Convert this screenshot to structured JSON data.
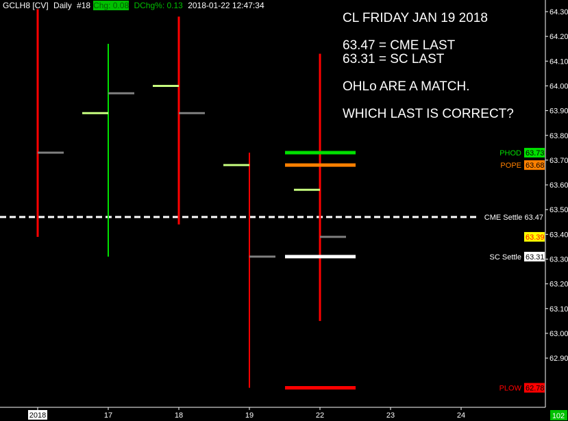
{
  "header": {
    "symbol": "GCLH8 [CV]",
    "interval": "Daily",
    "bar_number": "#18",
    "chg": "Chg: 0.08",
    "dchg": "DChg%: 0.13",
    "timestamp": "2018-01-22 12:47:34"
  },
  "annotation": {
    "line1": "CL FRIDAY JAN 19 2018",
    "line2": "63.47 = CME LAST",
    "line3": "63.31 = SC LAST",
    "line4": "OHLo ARE A MATCH.",
    "line5": "WHICH LAST IS CORRECT?"
  },
  "colors": {
    "background": "#000000",
    "down_bar": "#ff0000",
    "up_bar": "#00e000",
    "open_tick": "#c8ff80",
    "close_tick": "#808080",
    "axis": "#ffffff"
  },
  "chart_data": {
    "type": "ohlc",
    "ylim": [
      62.75,
      64.32
    ],
    "y_ticks": [
      "64.30",
      "64.20",
      "64.10",
      "64.00",
      "63.90",
      "63.80",
      "63.70",
      "63.60",
      "63.50",
      "63.40",
      "63.30",
      "63.20",
      "63.10",
      "63.00",
      "62.90"
    ],
    "x_labels": [
      "2018",
      "17",
      "18",
      "19",
      "22",
      "23",
      "24"
    ],
    "bars": [
      {
        "label": "2018",
        "open": null,
        "high": 64.31,
        "low": 63.39,
        "close": 63.73,
        "dir": "down"
      },
      {
        "label": "17",
        "open": 63.89,
        "high": 64.17,
        "low": 63.31,
        "close": 63.97,
        "dir": "up"
      },
      {
        "label": "18",
        "open": 64.0,
        "high": 64.28,
        "low": 63.44,
        "close": 63.89,
        "dir": "down"
      },
      {
        "label": "19",
        "open": 63.68,
        "high": 63.73,
        "low": 62.78,
        "close": 63.31,
        "dir": "down"
      },
      {
        "label": "22",
        "open": 63.58,
        "high": 64.13,
        "low": 63.05,
        "close": 63.39,
        "dir": "down"
      }
    ],
    "levels": [
      {
        "name": "PHOD",
        "value": "63.73",
        "color": "#00e000",
        "text_color": "#00e000",
        "box_text": "#000000"
      },
      {
        "name": "POPE",
        "value": "63.68",
        "color": "#ff8000",
        "text_color": "#ff8000",
        "box_text": "#000000"
      },
      {
        "name": "SC Settle",
        "value": "63.31",
        "color": "#ffffff",
        "text_color": "#ffffff",
        "box_text": "#000000"
      },
      {
        "name": "PLOW",
        "value": "62.78",
        "color": "#ff0000",
        "text_color": "#ff0000",
        "box_text": "#000000"
      }
    ],
    "cme_settle": {
      "label": "CME Settle  63.47",
      "value": 63.47
    },
    "last_price": {
      "value": "63.39",
      "box": "#ffff00",
      "text": "#ff0000"
    },
    "bar_count": "102"
  }
}
